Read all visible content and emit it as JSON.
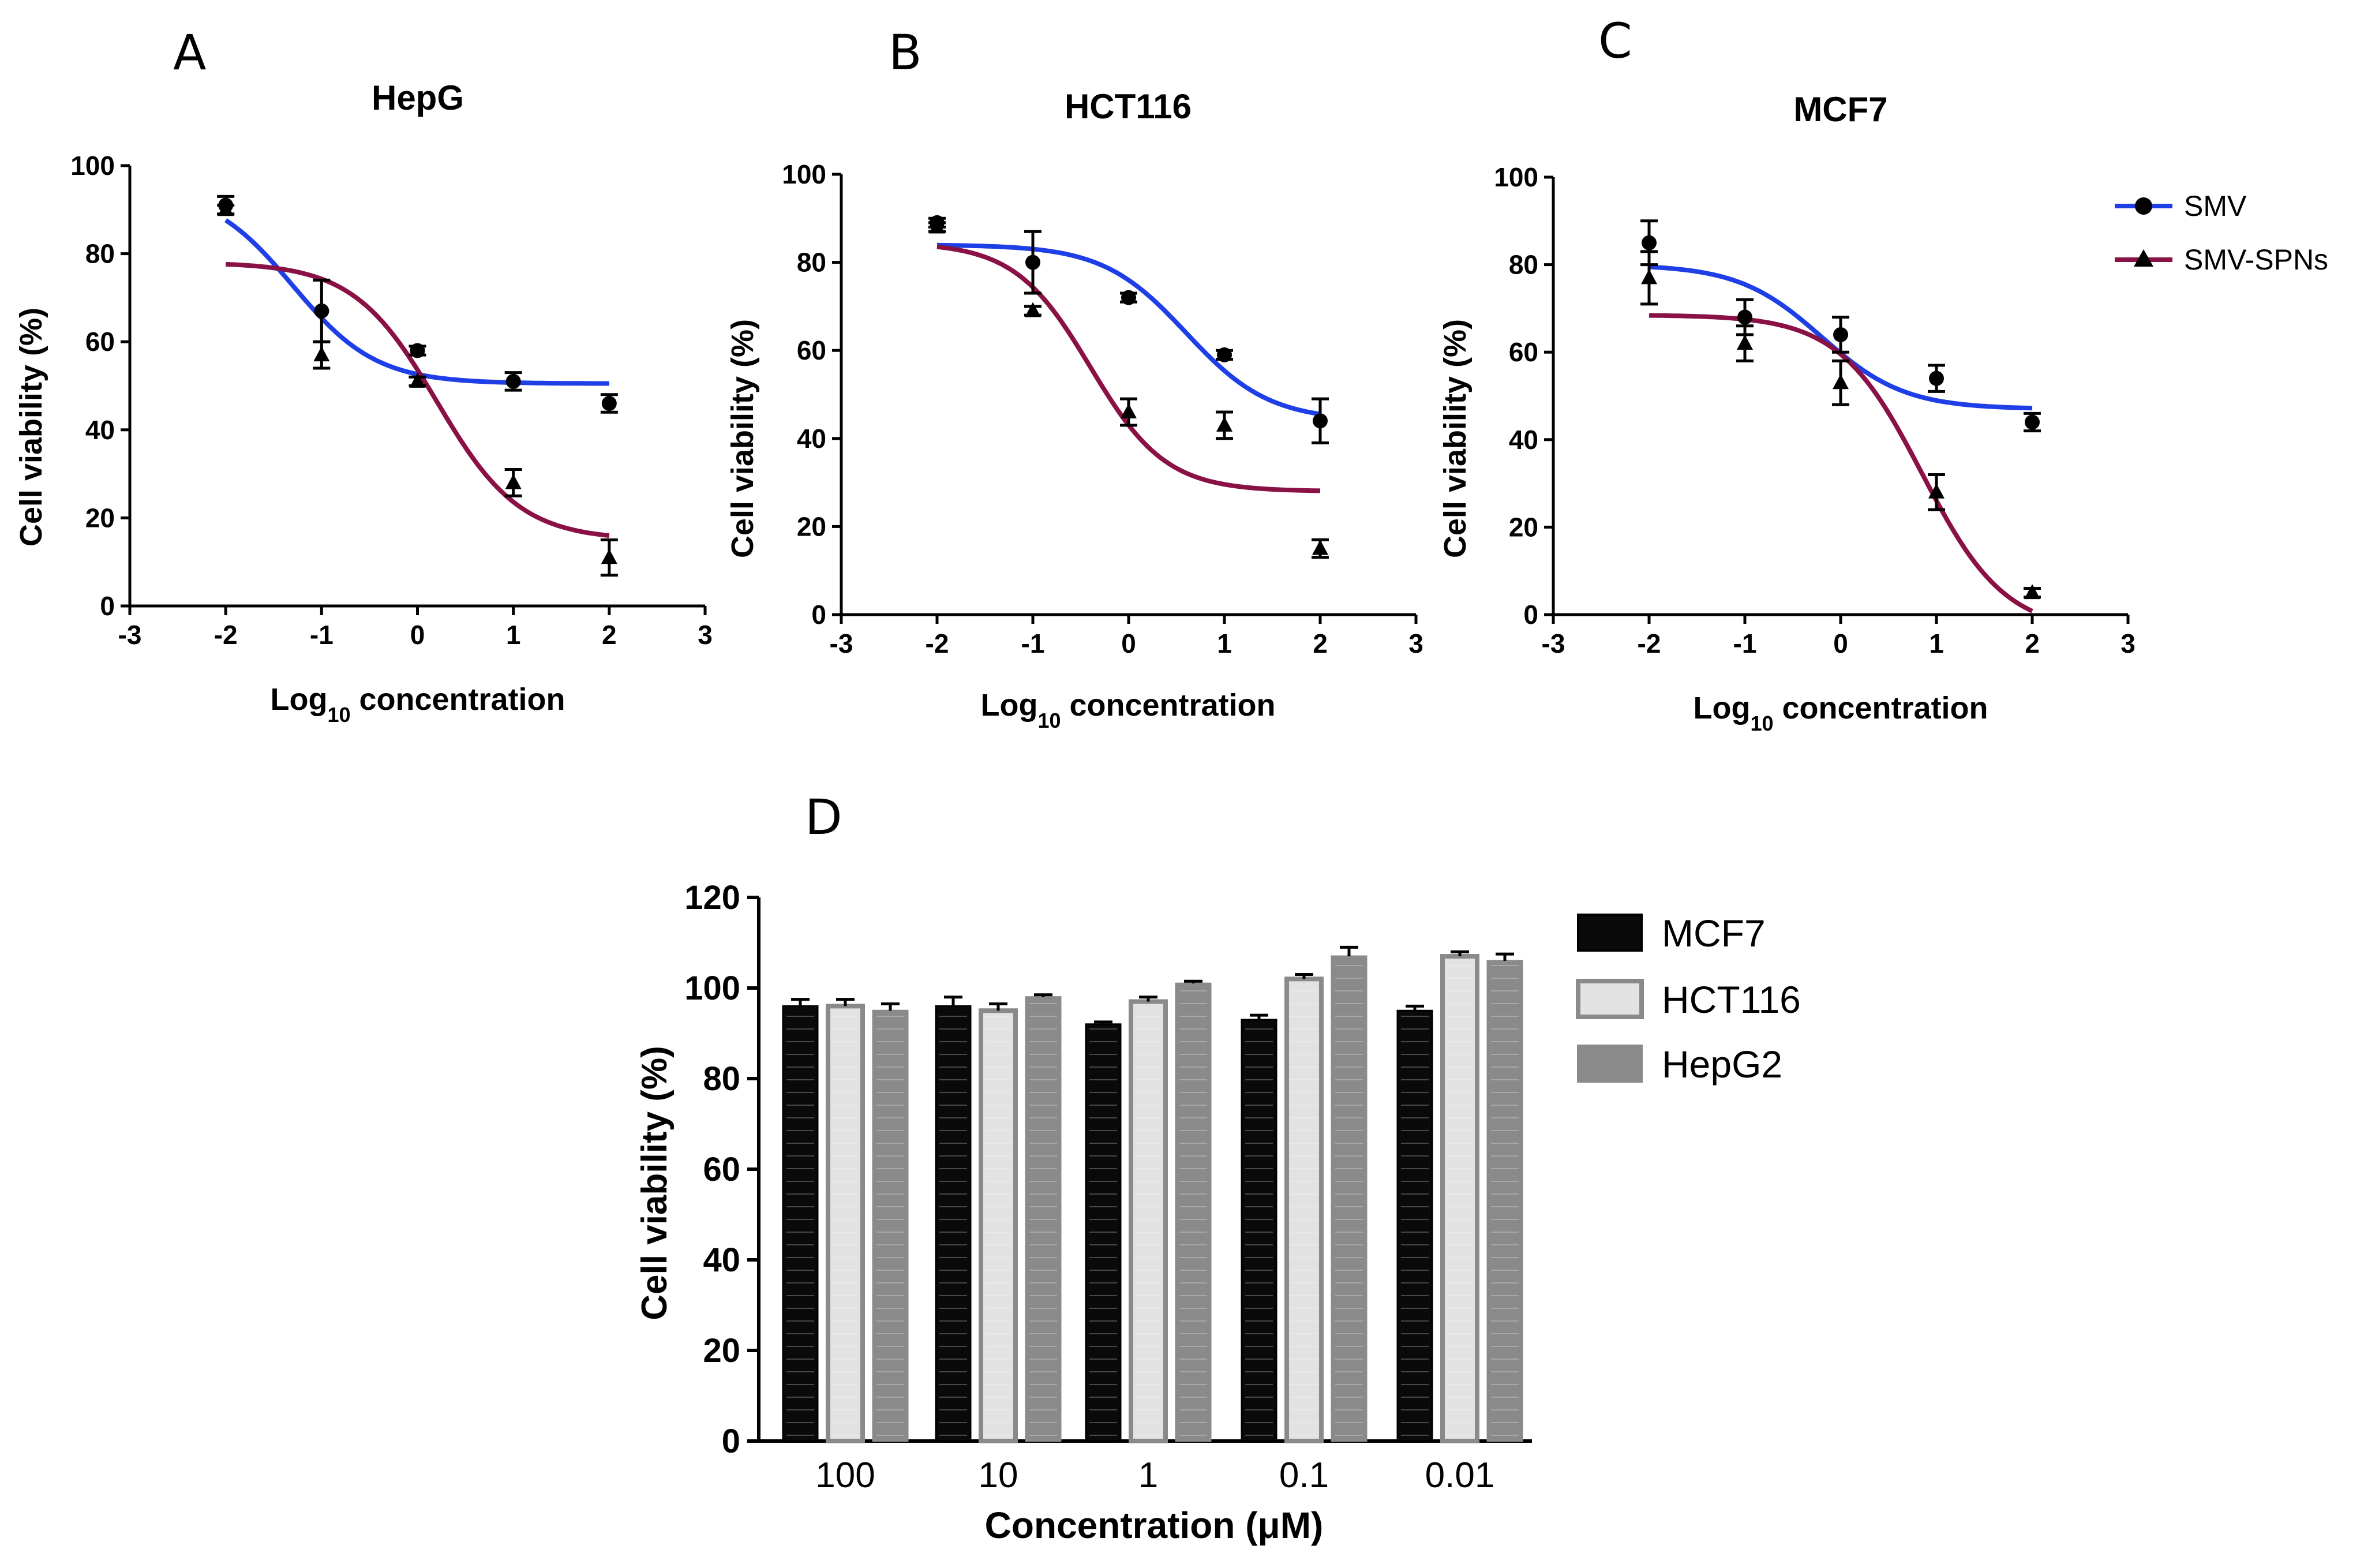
{
  "panels": [
    {
      "label": "A",
      "title": "HepG",
      "ylabel": "Cell viability (%)",
      "xlabel_main": "Log",
      "xlabel_sub": "10",
      "xlabel_rest": " concentration",
      "xlim": [
        -3,
        3
      ],
      "ylim": [
        0,
        100
      ],
      "xticks": [
        "-3",
        "-2",
        "-1",
        "0",
        "1",
        "2",
        "3"
      ],
      "yticks": [
        "0",
        "20",
        "40",
        "60",
        "80",
        "100"
      ]
    },
    {
      "label": "B",
      "title": "HCT116",
      "ylabel": "Cell viability (%)",
      "xlabel_main": "Log",
      "xlabel_sub": "10",
      "xlabel_rest": " concentration",
      "xlim": [
        -3,
        3
      ],
      "ylim": [
        0,
        100
      ],
      "xticks": [
        "-3",
        "-2",
        "-1",
        "0",
        "1",
        "2",
        "3"
      ],
      "yticks": [
        "0",
        "20",
        "40",
        "60",
        "80",
        "100"
      ]
    },
    {
      "label": "C",
      "title": "MCF7",
      "ylabel": "Cell viability (%)",
      "xlabel_main": "Log",
      "xlabel_sub": "10",
      "xlabel_rest": " concentration",
      "xlim": [
        -3,
        3
      ],
      "ylim": [
        0,
        100
      ],
      "xticks": [
        "-3",
        "-2",
        "-1",
        "0",
        "1",
        "2",
        "3"
      ],
      "yticks": [
        "0",
        "20",
        "40",
        "60",
        "80",
        "100"
      ]
    },
    {
      "label": "D",
      "ylabel": "Cell viability (%)",
      "xlabel": "Concentration (μM)",
      "yticks": [
        "0",
        "20",
        "40",
        "60",
        "80",
        "100",
        "120"
      ],
      "categories": [
        "100",
        "10",
        "1",
        "0.1",
        "0.01"
      ]
    }
  ],
  "legend_top": [
    {
      "name": "SMV",
      "color": "#1f3fe6",
      "marker": "circle"
    },
    {
      "name": "SMV-SPNs",
      "color": "#8a1145",
      "marker": "triangle"
    }
  ],
  "legend_bottom": [
    {
      "name": "MCF7",
      "color": "#0a0a0a"
    },
    {
      "name": "HCT116",
      "color": "#e2e2e2"
    },
    {
      "name": "HepG2",
      "color": "#8a8a8a"
    }
  ],
  "chart_data": [
    {
      "type": "scatter",
      "title": "HepG",
      "xlabel": "Log10 concentration",
      "ylabel": "Cell viability (%)",
      "xlim": [
        -3,
        3
      ],
      "ylim": [
        0,
        100
      ],
      "series": [
        {
          "name": "SMV",
          "x": [
            -2,
            -1,
            0,
            1,
            2
          ],
          "y": [
            91,
            67,
            58,
            51,
            46
          ],
          "err": [
            2,
            7,
            1,
            2,
            2
          ],
          "fit": {
            "bottom": 50.5,
            "top": 95,
            "logec50": -1.3,
            "hill": 1.0
          }
        },
        {
          "name": "SMV-SPNs",
          "x": [
            -2,
            -1,
            0,
            1,
            2
          ],
          "y": [
            90,
            57,
            51,
            28,
            11
          ],
          "err": [
            1,
            3,
            1,
            3,
            4
          ],
          "fit": {
            "bottom": 15,
            "top": 78,
            "logec50": 0.2,
            "hill": 1.0
          }
        }
      ]
    },
    {
      "type": "scatter",
      "title": "HCT116",
      "xlabel": "Log10 concentration",
      "ylabel": "Cell viability (%)",
      "xlim": [
        -3,
        3
      ],
      "ylim": [
        0,
        100
      ],
      "series": [
        {
          "name": "SMV",
          "x": [
            -2,
            -1,
            0,
            1,
            2
          ],
          "y": [
            89,
            80,
            72,
            59,
            44
          ],
          "err": [
            1,
            7,
            1,
            1,
            5
          ],
          "fit": {
            "bottom": 44,
            "top": 84,
            "logec50": 0.6,
            "hill": 1.0
          }
        },
        {
          "name": "SMV-SPNs",
          "x": [
            -2,
            -1,
            0,
            1,
            2
          ],
          "y": [
            88,
            69,
            46,
            43,
            15
          ],
          "err": [
            1,
            1,
            3,
            3,
            2
          ],
          "fit": {
            "bottom": 28,
            "top": 84.5,
            "logec50": -0.4,
            "hill": 1.1
          }
        }
      ]
    },
    {
      "type": "scatter",
      "title": "MCF7",
      "xlabel": "Log10 concentration",
      "ylabel": "Cell viability (%)",
      "xlim": [
        -3,
        3
      ],
      "ylim": [
        0,
        100
      ],
      "series": [
        {
          "name": "SMV",
          "x": [
            -2,
            -1,
            0,
            1,
            2
          ],
          "y": [
            85,
            68,
            64,
            54,
            44
          ],
          "err": [
            5,
            4,
            4,
            3,
            2
          ],
          "fit": {
            "bottom": 47,
            "top": 80,
            "logec50": -0.2,
            "hill": 1.0
          }
        },
        {
          "name": "SMV-SPNs",
          "x": [
            -2,
            -1,
            0,
            1,
            2
          ],
          "y": [
            77,
            62,
            53,
            28,
            5
          ],
          "err": [
            6,
            4,
            5,
            4,
            1
          ],
          "fit": {
            "bottom": -4,
            "top": 68.5,
            "logec50": 0.85,
            "hill": 1.0
          }
        }
      ]
    },
    {
      "type": "bar",
      "xlabel": "Concentration (μM)",
      "ylabel": "Cell viability (%)",
      "ylim": [
        0,
        120
      ],
      "categories": [
        "100",
        "10",
        "1",
        "0.1",
        "0.01"
      ],
      "series": [
        {
          "name": "MCF7",
          "values": [
            96,
            96,
            92,
            93,
            95
          ],
          "err": [
            1.5,
            2,
            0.5,
            1,
            1
          ]
        },
        {
          "name": "HCT116",
          "values": [
            96,
            95,
            97,
            102,
            107
          ],
          "err": [
            1.5,
            1.5,
            1,
            1,
            1
          ]
        },
        {
          "name": "HepG2",
          "values": [
            95,
            98,
            101,
            107,
            106
          ],
          "err": [
            1.5,
            0.5,
            0.5,
            2,
            1.5
          ]
        }
      ]
    }
  ]
}
